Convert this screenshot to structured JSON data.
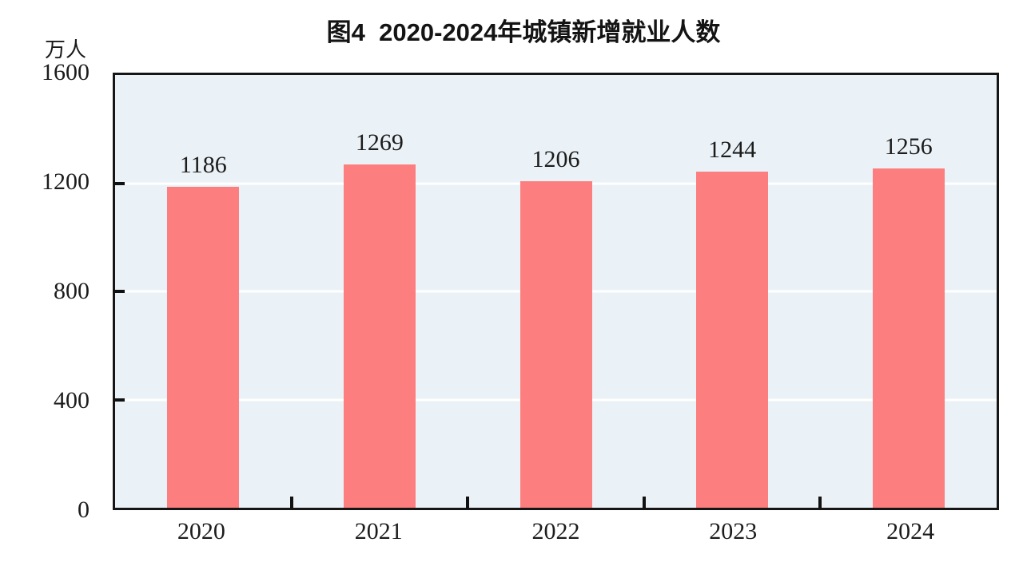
{
  "chart_data": {
    "type": "bar",
    "title": "图4  2020-2024年城镇新增就业人数",
    "categories": [
      "2020",
      "2021",
      "2022",
      "2023",
      "2024"
    ],
    "values": [
      1186,
      1269,
      1206,
      1244,
      1256
    ],
    "data_labels": [
      "1186",
      "1269",
      "1206",
      "1244",
      "1256"
    ],
    "xlabel": "",
    "ylabel": "万人",
    "ylim": [
      0,
      1600
    ],
    "y_ticks": [
      0,
      400,
      800,
      1200,
      1600
    ],
    "grid": "horizontal-white-lines-at-400-800-1200",
    "legend": "none",
    "bar_color": "#FD7E7E",
    "plot_background": "#EBF2F7",
    "axis_color": "#161616",
    "label_color": "#1c1c1c"
  }
}
